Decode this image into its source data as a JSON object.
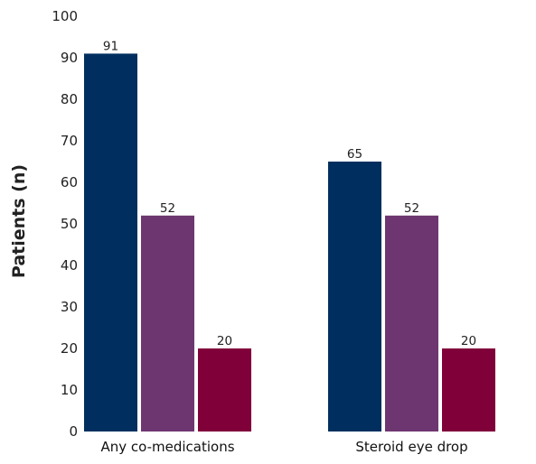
{
  "chart_data": {
    "type": "bar",
    "title": "",
    "xlabel": "",
    "ylabel": "Patients (n)",
    "ylim": [
      0,
      100
    ],
    "yticks": [
      0,
      10,
      20,
      30,
      40,
      50,
      60,
      70,
      80,
      90,
      100
    ],
    "grid": false,
    "legend": "none",
    "categories": [
      "Any co-medications",
      "Steroid eye drop"
    ],
    "series": [
      {
        "color": "#002f5f",
        "values": [
          91,
          65
        ]
      },
      {
        "color": "#6e3670",
        "values": [
          52,
          52
        ]
      },
      {
        "color": "#80003a",
        "values": [
          20,
          20
        ]
      }
    ],
    "data_labels": [
      [
        "91",
        "65"
      ],
      [
        "52",
        "52"
      ],
      [
        "20",
        "20"
      ]
    ]
  }
}
